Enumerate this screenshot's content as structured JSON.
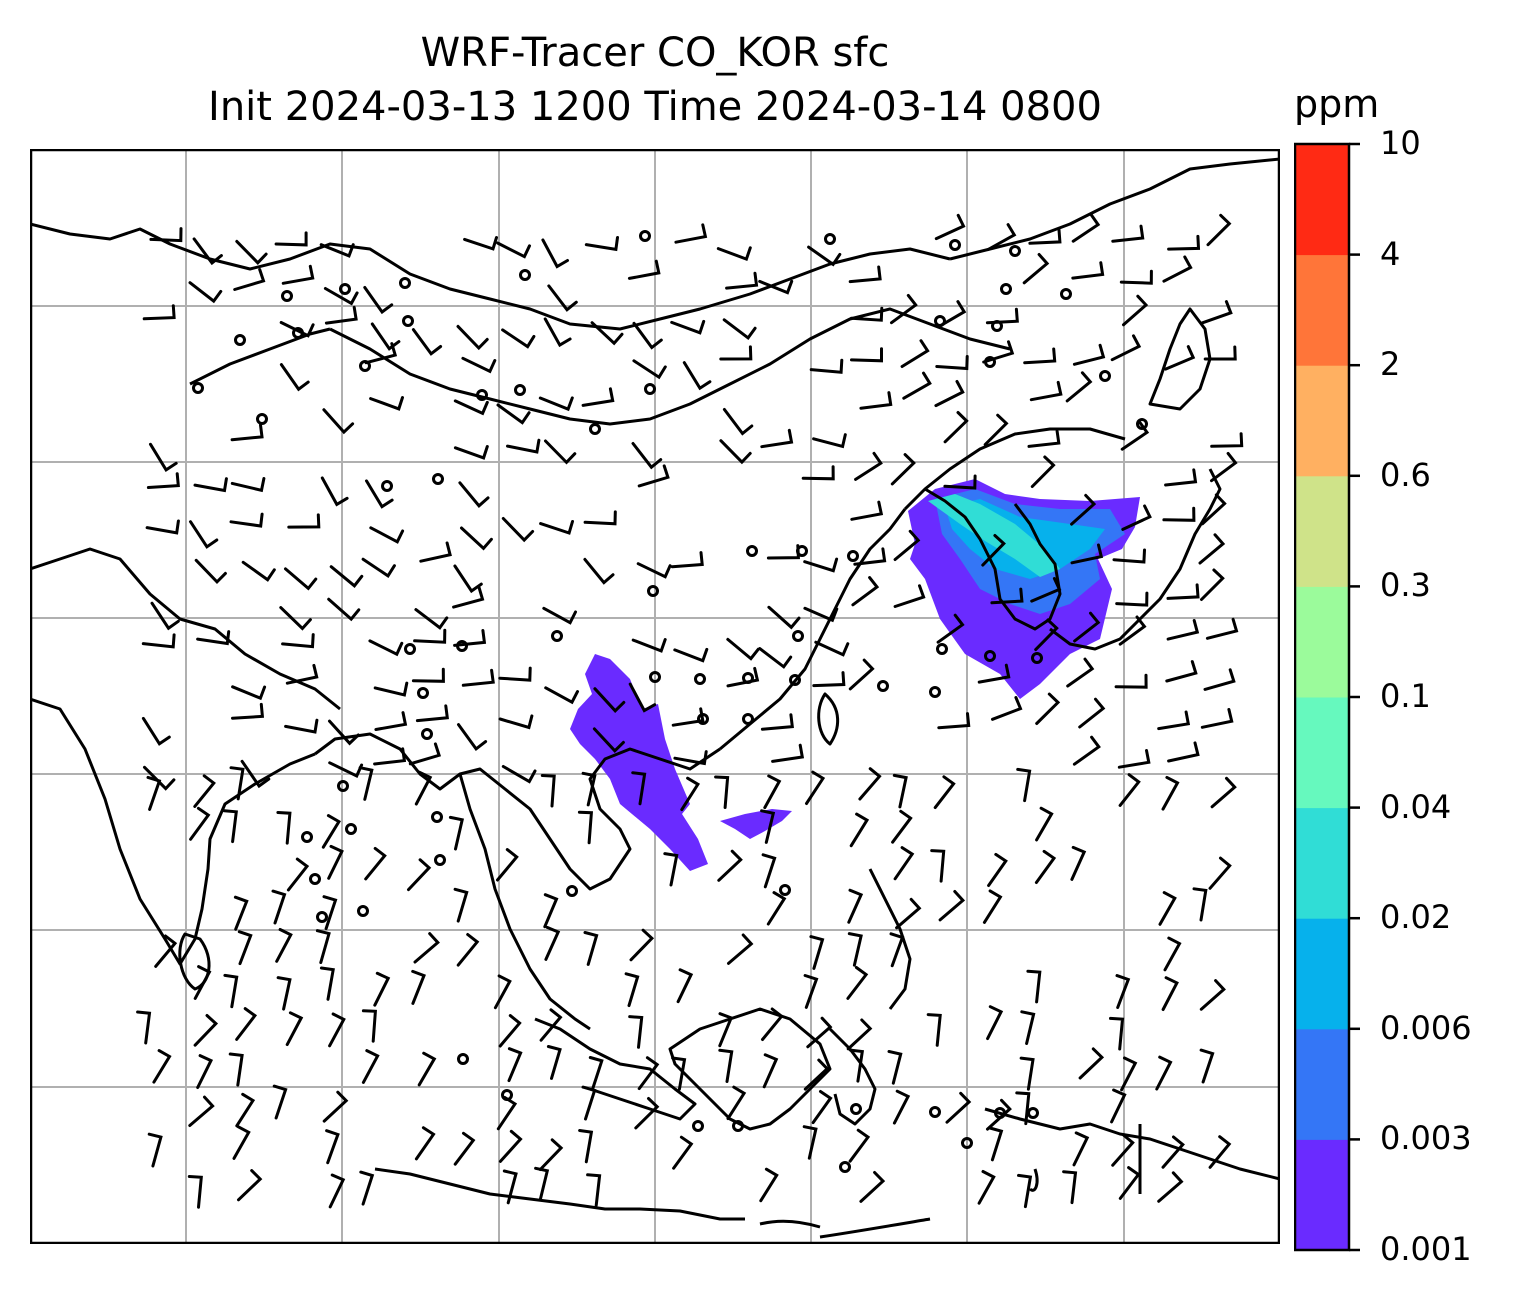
{
  "title": {
    "line1": "WRF-Tracer CO_KOR sfc",
    "line2": "Init 2024-03-13 1200 Time 2024-03-14 0800"
  },
  "colorbar": {
    "unit": "ppm",
    "ticks": [
      "0.001",
      "0.003",
      "0.006",
      "0.02",
      "0.04",
      "0.1",
      "0.3",
      "0.6",
      "2",
      "4",
      "10"
    ],
    "colors": [
      "#6a2bff",
      "#3476f6",
      "#06b1ec",
      "#30ddd6",
      "#66f9be",
      "#9bfb9b",
      "#cfe389",
      "#ffb061",
      "#ff7539",
      "#ff2a14"
    ]
  },
  "chart_data": {
    "type": "map",
    "field": "CO_KOR tracer concentration (surface)",
    "unit": "ppm",
    "levels": [
      0.001,
      0.003,
      0.006,
      0.02,
      0.04,
      0.1,
      0.3,
      0.6,
      2,
      4,
      10
    ],
    "overlay": "wind barbs",
    "grid": true,
    "region": "East and Southeast Asia"
  }
}
